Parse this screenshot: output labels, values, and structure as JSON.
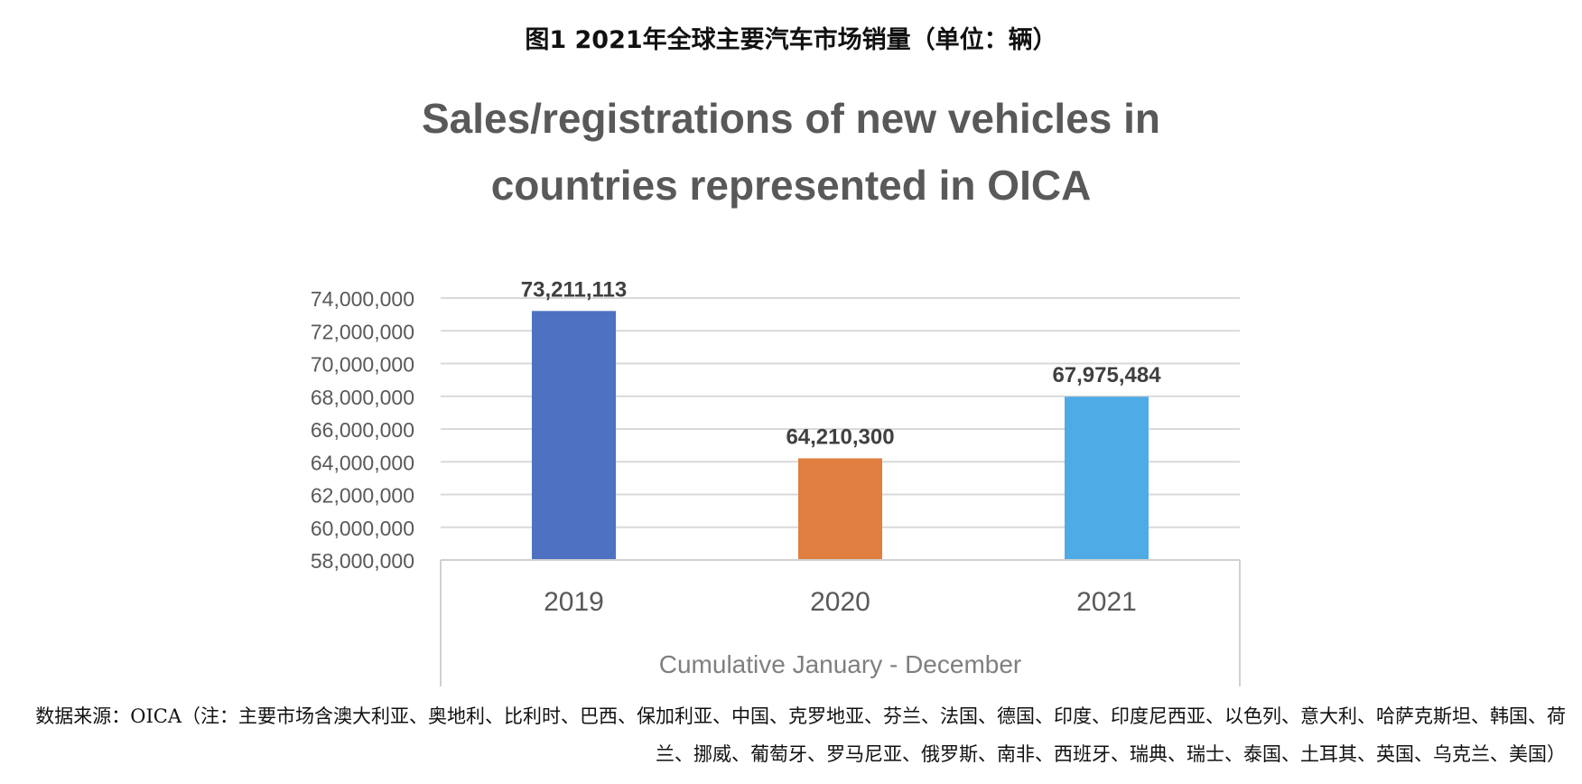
{
  "figure": {
    "caption": "图1  2021年全球主要汽车市场销量（单位：辆）"
  },
  "chart_data": {
    "type": "bar",
    "title": "Sales/registrations of new vehicles in countries represented in OICA",
    "xlabel": "Cumulative January - December",
    "ylabel": "",
    "categories": [
      "2019",
      "2020",
      "2021"
    ],
    "values": [
      73211113,
      64210300,
      67975484
    ],
    "data_labels": [
      "73,211,113",
      "64,210,300",
      "67,975,484"
    ],
    "ylim": [
      58000000,
      74000000
    ],
    "yticks": [
      58000000,
      60000000,
      62000000,
      64000000,
      66000000,
      68000000,
      70000000,
      72000000,
      74000000
    ],
    "ytick_labels": [
      "58,000,000",
      "60,000,000",
      "62,000,000",
      "64,000,000",
      "66,000,000",
      "68,000,000",
      "70,000,000",
      "72,000,000",
      "74,000,000"
    ],
    "bar_colors": [
      "#4e72c1",
      "#e07f40",
      "#4fabe6"
    ],
    "grid": true,
    "legend": "none"
  },
  "source_note": "数据来源：OICA（注：主要市场含澳大利亚、奥地利、比利时、巴西、保加利亚、中国、克罗地亚、芬兰、法国、德国、印度、印度尼西亚、以色列、意大利、哈萨克斯坦、韩国、荷兰、挪威、葡萄牙、罗马尼亚、俄罗斯、南非、西班牙、瑞典、瑞士、泰国、土耳其、英国、乌克兰、美国）"
}
